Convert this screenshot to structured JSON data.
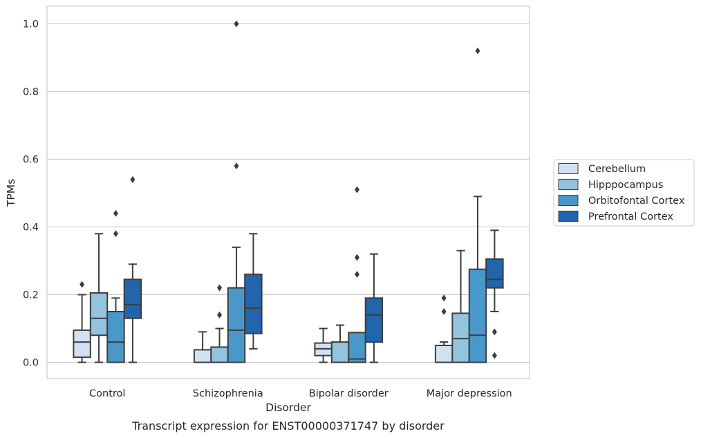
{
  "chart_data": {
    "type": "boxplot",
    "title": "",
    "caption": "Transcript expression for ENST00000371747 by disorder",
    "xlabel": "Disorder",
    "ylabel": "TPMs",
    "ylim": [
      -0.048,
      1.052
    ],
    "yticks": [
      "0.0",
      "0.2",
      "0.4",
      "0.6",
      "0.8",
      "1.0"
    ],
    "grid": true,
    "legend_position": "right",
    "categories": [
      "Control",
      "Schizophrenia",
      "Bipolar disorder",
      "Major depression"
    ],
    "series": [
      {
        "name": "Cerebellum",
        "color": "#cfe1f2",
        "boxes": [
          {
            "whisker_low": 0.0,
            "q1": 0.015,
            "median": 0.06,
            "q3": 0.095,
            "whisker_high": 0.2,
            "outliers": [
              0.23
            ]
          },
          {
            "whisker_low": 0.0,
            "q1": 0.0,
            "median": 0.0,
            "q3": 0.037,
            "whisker_high": 0.09,
            "outliers": []
          },
          {
            "whisker_low": 0.0,
            "q1": 0.02,
            "median": 0.04,
            "q3": 0.057,
            "whisker_high": 0.1,
            "outliers": []
          },
          {
            "whisker_low": 0.0,
            "q1": 0.0,
            "median": 0.0,
            "q3": 0.05,
            "whisker_high": 0.06,
            "outliers": [
              0.15,
              0.19
            ]
          }
        ]
      },
      {
        "name": "Hipppocampus",
        "color": "#93c4de",
        "boxes": [
          {
            "whisker_low": 0.0,
            "q1": 0.08,
            "median": 0.13,
            "q3": 0.205,
            "whisker_high": 0.38,
            "outliers": []
          },
          {
            "whisker_low": 0.0,
            "q1": 0.0,
            "median": 0.0,
            "q3": 0.045,
            "whisker_high": 0.1,
            "outliers": [
              0.14,
              0.22
            ]
          },
          {
            "whisker_low": 0.0,
            "q1": 0.0,
            "median": 0.0,
            "q3": 0.06,
            "whisker_high": 0.11,
            "outliers": []
          },
          {
            "whisker_low": 0.0,
            "q1": 0.0,
            "median": 0.07,
            "q3": 0.145,
            "whisker_high": 0.33,
            "outliers": []
          }
        ]
      },
      {
        "name": "Orbitofontal Cortex",
        "color": "#4a98c9",
        "boxes": [
          {
            "whisker_low": 0.0,
            "q1": 0.0,
            "median": 0.06,
            "q3": 0.15,
            "whisker_high": 0.19,
            "outliers": [
              0.38,
              0.44
            ]
          },
          {
            "whisker_low": 0.0,
            "q1": 0.0,
            "median": 0.095,
            "q3": 0.22,
            "whisker_high": 0.34,
            "outliers": [
              0.58,
              1.0
            ]
          },
          {
            "whisker_low": 0.0,
            "q1": 0.0,
            "median": 0.01,
            "q3": 0.088,
            "whisker_high": 0.088,
            "outliers": [
              0.26,
              0.31,
              0.51
            ]
          },
          {
            "whisker_low": 0.0,
            "q1": 0.0,
            "median": 0.08,
            "q3": 0.275,
            "whisker_high": 0.49,
            "outliers": [
              0.92
            ]
          }
        ]
      },
      {
        "name": "Prefrontal Cortex",
        "color": "#2166ac",
        "boxes": [
          {
            "whisker_low": 0.0,
            "q1": 0.13,
            "median": 0.17,
            "q3": 0.245,
            "whisker_high": 0.29,
            "outliers": [
              0.54
            ]
          },
          {
            "whisker_low": 0.04,
            "q1": 0.085,
            "median": 0.16,
            "q3": 0.26,
            "whisker_high": 0.38,
            "outliers": []
          },
          {
            "whisker_low": 0.0,
            "q1": 0.06,
            "median": 0.14,
            "q3": 0.19,
            "whisker_high": 0.32,
            "outliers": []
          },
          {
            "whisker_low": 0.15,
            "q1": 0.22,
            "median": 0.245,
            "q3": 0.305,
            "whisker_high": 0.39,
            "outliers": [
              0.02,
              0.09
            ]
          }
        ]
      }
    ]
  }
}
